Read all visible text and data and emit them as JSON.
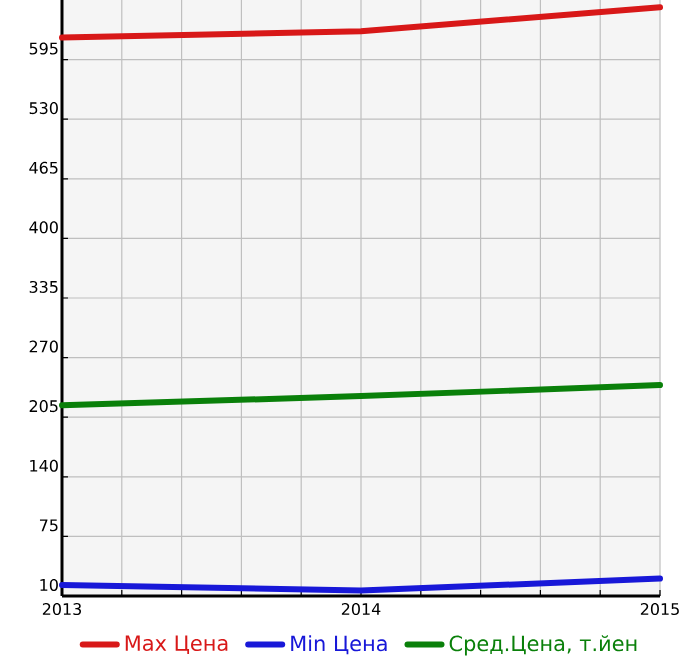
{
  "chart_data": {
    "type": "line",
    "x": [
      2013,
      2014,
      2015
    ],
    "series": [
      {
        "name": "Max Цена",
        "color": "#d81818",
        "values": [
          619,
          626,
          652
        ]
      },
      {
        "name": "Min Цена",
        "color": "#1818d8",
        "values": [
          22,
          16,
          29
        ]
      },
      {
        "name": "Сред.Цена, т.йен",
        "color": "#0a800a",
        "values": [
          218,
          228,
          240
        ]
      }
    ],
    "xlim": [
      2013,
      2015
    ],
    "xticks": [
      2013,
      {
        "value": 2013.2,
        "label": null
      },
      {
        "value": 2013.4,
        "label": null
      },
      {
        "value": 2013.6,
        "label": null
      },
      {
        "value": 2013.8,
        "label": null
      },
      2014,
      {
        "value": 2014.2,
        "label": null
      },
      {
        "value": 2014.4,
        "label": null
      },
      {
        "value": 2014.6,
        "label": null
      },
      {
        "value": 2014.8,
        "label": null
      },
      2015
    ],
    "ylim": [
      10,
      660
    ],
    "yticks": [
      10,
      75,
      140,
      205,
      270,
      335,
      400,
      465,
      530,
      595
    ],
    "grid": true,
    "legend": "bottom",
    "marker": "none",
    "line_style": "solid"
  }
}
